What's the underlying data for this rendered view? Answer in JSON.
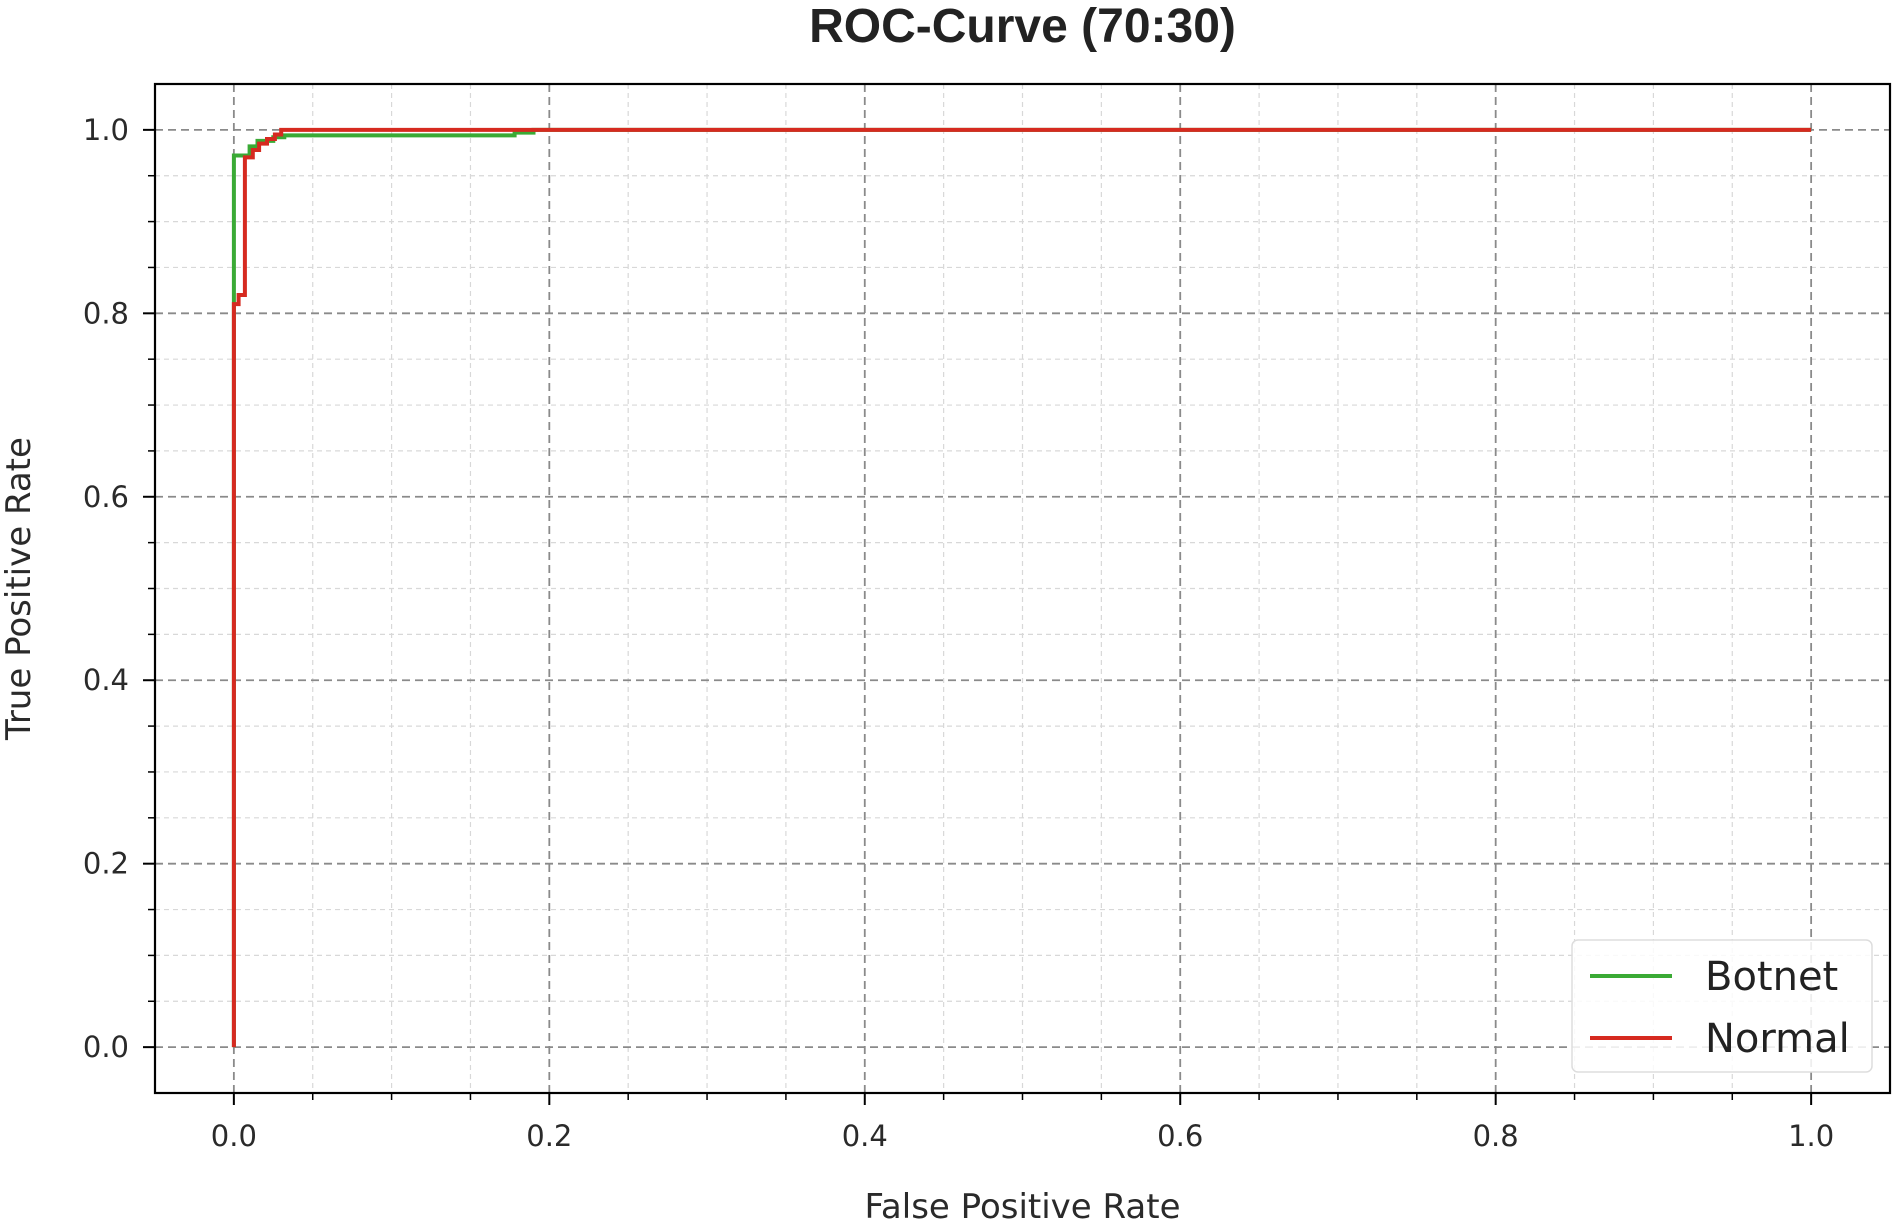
{
  "chart_data": {
    "type": "line",
    "title": "ROC-Curve (70:30)",
    "xlabel": "False Positive Rate",
    "ylabel": "True Positive Rate",
    "xlim": [
      -0.05,
      1.05
    ],
    "ylim": [
      -0.05,
      1.05
    ],
    "xticks": [
      "0.0",
      "0.2",
      "0.4",
      "0.6",
      "0.8",
      "1.0"
    ],
    "yticks": [
      "0.0",
      "0.2",
      "0.4",
      "0.6",
      "0.8",
      "1.0"
    ],
    "grid": true,
    "legend_position": "lower right",
    "series": [
      {
        "name": "Botnet",
        "color": "#3aaa35",
        "x": [
          0.0,
          0.0,
          0.0,
          0.0,
          0.01,
          0.01,
          0.015,
          0.015,
          0.025,
          0.025,
          0.032,
          0.032,
          0.178,
          0.178,
          0.19,
          0.19,
          1.0
        ],
        "y": [
          0.0,
          0.81,
          0.81,
          0.972,
          0.972,
          0.982,
          0.982,
          0.988,
          0.988,
          0.992,
          0.992,
          0.994,
          0.994,
          0.997,
          0.997,
          1.0,
          1.0
        ]
      },
      {
        "name": "Normal",
        "color": "#d62a20",
        "x": [
          0.0,
          0.0,
          0.003,
          0.003,
          0.007,
          0.007,
          0.012,
          0.012,
          0.016,
          0.016,
          0.021,
          0.021,
          0.026,
          0.026,
          0.03,
          0.03,
          1.0
        ],
        "y": [
          0.0,
          0.81,
          0.81,
          0.82,
          0.82,
          0.97,
          0.97,
          0.978,
          0.978,
          0.985,
          0.985,
          0.99,
          0.99,
          0.995,
          0.995,
          1.0,
          1.0
        ]
      }
    ]
  }
}
